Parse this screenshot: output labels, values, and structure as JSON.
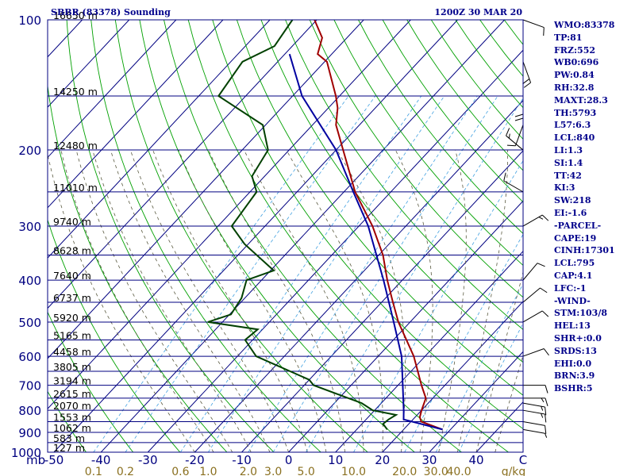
{
  "header": {
    "title": "SBBR (83378) Sounding",
    "timestamp": "1200Z 30 MAR 20"
  },
  "indices": [
    "WMO:83378",
    "TP:81",
    "FRZ:552",
    "WB0:696",
    "PW:0.84",
    "RH:32.8",
    "MAXT:28.3",
    "TH:5793",
    "L57:6.3",
    "LCL:840",
    "LI:1.3",
    "SI:1.4",
    "TT:42",
    "KI:3",
    "SW:218",
    "EI:-1.6",
    "-PARCEL-",
    "CAPE:19",
    "CINH:17301",
    "LCL:795",
    "CAP:4.1",
    "LFC:-1",
    "-WIND-",
    "STM:103/8",
    "HEL:13",
    "SHR+:0.0",
    "SRDS:13",
    "EHI:0.0",
    "BRN:3.9",
    "BSHR:5"
  ],
  "chart_data": {
    "type": "line",
    "title": "SBBR (83378) Sounding",
    "xlabel": "",
    "ylabel": "mb",
    "xlim": [
      -50,
      50
    ],
    "ylim": [
      1000,
      100
    ],
    "y_scale": "log",
    "pressure_ticks": [
      100,
      200,
      300,
      400,
      500,
      600,
      700,
      800,
      900,
      1000
    ],
    "temp_ticks": [
      -50,
      -40,
      -30,
      -20,
      -10,
      0,
      10,
      20,
      30,
      40
    ],
    "temp_axis_end_label": "C",
    "mixing_ratio_ticks": [
      "0.1",
      "0.2",
      "0.6",
      "1.0",
      "2.0",
      "3.0",
      "5.0",
      "10.0",
      "20.0",
      "30.0",
      "40.0"
    ],
    "mixing_ratio_unit": "g/kg",
    "height_labels": [
      {
        "p": 100,
        "label": "16650 m"
      },
      {
        "p": 150,
        "label": "14250 m"
      },
      {
        "p": 200,
        "label": "12480 m"
      },
      {
        "p": 250,
        "label": "11010 m"
      },
      {
        "p": 300,
        "label": "9740 m"
      },
      {
        "p": 350,
        "label": "8628 m"
      },
      {
        "p": 400,
        "label": "7640 m"
      },
      {
        "p": 450,
        "label": "6737 m"
      },
      {
        "p": 500,
        "label": "5920 m"
      },
      {
        "p": 550,
        "label": "5165 m"
      },
      {
        "p": 600,
        "label": "4458 m"
      },
      {
        "p": 650,
        "label": "3805 m"
      },
      {
        "p": 700,
        "label": "3194 m"
      },
      {
        "p": 750,
        "label": "2615 m"
      },
      {
        "p": 800,
        "label": "2070 m"
      },
      {
        "p": 850,
        "label": "1553 m"
      },
      {
        "p": 900,
        "label": "1062 m"
      },
      {
        "p": 950,
        "label": "583 m"
      },
      {
        "p": 1000,
        "label": "127 m"
      }
    ],
    "series": [
      {
        "type": "temperature",
        "color": "#a00000",
        "points": [
          {
            "p": 886,
            "t": 28.3
          },
          {
            "p": 850,
            "t": 22.2
          },
          {
            "p": 830,
            "t": 21.0
          },
          {
            "p": 800,
            "t": 20.0
          },
          {
            "p": 750,
            "t": 18.5
          },
          {
            "p": 700,
            "t": 15.0
          },
          {
            "p": 600,
            "t": 7.6
          },
          {
            "p": 500,
            "t": -2.5
          },
          {
            "p": 450,
            "t": -7.6
          },
          {
            "p": 400,
            "t": -13.2
          },
          {
            "p": 350,
            "t": -19.1
          },
          {
            "p": 300,
            "t": -27.1
          },
          {
            "p": 250,
            "t": -37.6
          },
          {
            "p": 200,
            "t": -48.5
          },
          {
            "p": 175,
            "t": -55.0
          },
          {
            "p": 160,
            "t": -58.0
          },
          {
            "p": 150,
            "t": -60.8
          },
          {
            "p": 125,
            "t": -69.5
          },
          {
            "p": 120,
            "t": -73.0
          },
          {
            "p": 110,
            "t": -75.3
          },
          {
            "p": 100,
            "t": -80.5
          }
        ]
      },
      {
        "type": "dewpoint",
        "color": "#004000",
        "points": [
          {
            "p": 886,
            "t": 16.5
          },
          {
            "p": 860,
            "t": 14.5
          },
          {
            "p": 840,
            "t": 14.8
          },
          {
            "p": 820,
            "t": 15.5
          },
          {
            "p": 800,
            "t": 9.6
          },
          {
            "p": 770,
            "t": 5.8
          },
          {
            "p": 700,
            "t": -8.0
          },
          {
            "p": 680,
            "t": -10.0
          },
          {
            "p": 600,
            "t": -26.0
          },
          {
            "p": 550,
            "t": -31.6
          },
          {
            "p": 520,
            "t": -31.0
          },
          {
            "p": 500,
            "t": -43.1
          },
          {
            "p": 480,
            "t": -39.7
          },
          {
            "p": 440,
            "t": -40.7
          },
          {
            "p": 400,
            "t": -43.2
          },
          {
            "p": 380,
            "t": -39.3
          },
          {
            "p": 330,
            "t": -50.8
          },
          {
            "p": 300,
            "t": -57.1
          },
          {
            "p": 250,
            "t": -58.6
          },
          {
            "p": 230,
            "t": -62.7
          },
          {
            "p": 200,
            "t": -64.5
          },
          {
            "p": 175,
            "t": -70.6
          },
          {
            "p": 150,
            "t": -85.8
          },
          {
            "p": 125,
            "t": -87.5
          },
          {
            "p": 115,
            "t": -83.8
          },
          {
            "p": 100,
            "t": -85.2
          }
        ]
      },
      {
        "type": "parcel",
        "color": "#0000a0",
        "points": [
          {
            "p": 886,
            "t": 28.3
          },
          {
            "p": 840,
            "t": 18.0
          },
          {
            "p": 800,
            "t": 16.2
          },
          {
            "p": 700,
            "t": 11.0
          },
          {
            "p": 600,
            "t": 5.0
          },
          {
            "p": 500,
            "t": -3.5
          },
          {
            "p": 400,
            "t": -14.0
          },
          {
            "p": 300,
            "t": -28.0
          },
          {
            "p": 250,
            "t": -38.0
          },
          {
            "p": 200,
            "t": -50.0
          },
          {
            "p": 150,
            "t": -68.0
          },
          {
            "p": 120,
            "t": -79.0
          }
        ]
      }
    ],
    "wind_barbs": [
      {
        "p": 886,
        "dir": 100,
        "spd": 5
      },
      {
        "p": 850,
        "dir": 100,
        "spd": 10
      },
      {
        "p": 800,
        "dir": 100,
        "spd": 15
      },
      {
        "p": 770,
        "dir": 100,
        "spd": 15
      },
      {
        "p": 750,
        "dir": 90,
        "spd": 15
      },
      {
        "p": 700,
        "dir": 90,
        "spd": 10
      },
      {
        "p": 600,
        "dir": 70,
        "spd": 10
      },
      {
        "p": 500,
        "dir": 60,
        "spd": 10
      },
      {
        "p": 450,
        "dir": 50,
        "spd": 10
      },
      {
        "p": 400,
        "dir": 40,
        "spd": 10
      },
      {
        "p": 300,
        "dir": 60,
        "spd": 15
      },
      {
        "p": 250,
        "dir": 300,
        "spd": 10
      },
      {
        "p": 200,
        "dir": 310,
        "spd": 15
      },
      {
        "p": 175,
        "dir": 200,
        "spd": 10
      },
      {
        "p": 150,
        "dir": 180,
        "spd": 20
      },
      {
        "p": 125,
        "dir": 160,
        "spd": 20
      },
      {
        "p": 100,
        "dir": 110,
        "spd": 10
      }
    ],
    "colors": {
      "isobar": "#000080",
      "isotherm": "#000080",
      "dry_adiabat": "#00a000",
      "moist_adiabat": "#5a5a40",
      "mixing_ratio": "#40a0e0",
      "temperature": "#a00000",
      "dewpoint": "#004000",
      "parcel": "#0000a0",
      "wind_barb": "#000000",
      "axis_text": "#000080",
      "mixing_ratio_text": "#8a7020"
    }
  }
}
